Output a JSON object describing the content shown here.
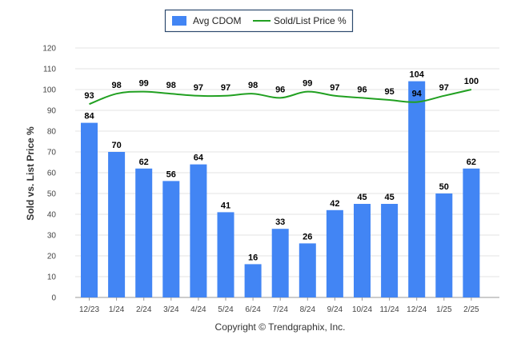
{
  "chart_data": {
    "type": "bar",
    "categories": [
      "12/23",
      "1/24",
      "2/24",
      "3/24",
      "4/24",
      "5/24",
      "6/24",
      "7/24",
      "8/24",
      "9/24",
      "10/24",
      "11/24",
      "12/24",
      "1/25",
      "2/25"
    ],
    "series": [
      {
        "name": "Avg CDOM",
        "type": "bar",
        "color": "#4285f4",
        "values": [
          84,
          70,
          62,
          56,
          64,
          41,
          16,
          33,
          26,
          42,
          45,
          45,
          104,
          50,
          62
        ]
      },
      {
        "name": "Sold/List Price %",
        "type": "line",
        "color": "#21a021",
        "values": [
          93,
          98,
          99,
          98,
          97,
          97,
          98,
          96,
          99,
          97,
          96,
          95,
          94,
          97,
          100
        ]
      }
    ],
    "ylabel": "Sold vs. List Price %",
    "ylim": [
      0,
      120
    ],
    "yticks": [
      0,
      10,
      20,
      30,
      40,
      50,
      60,
      70,
      80,
      90,
      100,
      110,
      120
    ],
    "grid": true,
    "legend": "top-center"
  },
  "legend": {
    "bar_label": "Avg CDOM",
    "line_label": "Sold/List Price %"
  },
  "footer": {
    "credit": "Copyright © Trendgraphix, Inc."
  }
}
